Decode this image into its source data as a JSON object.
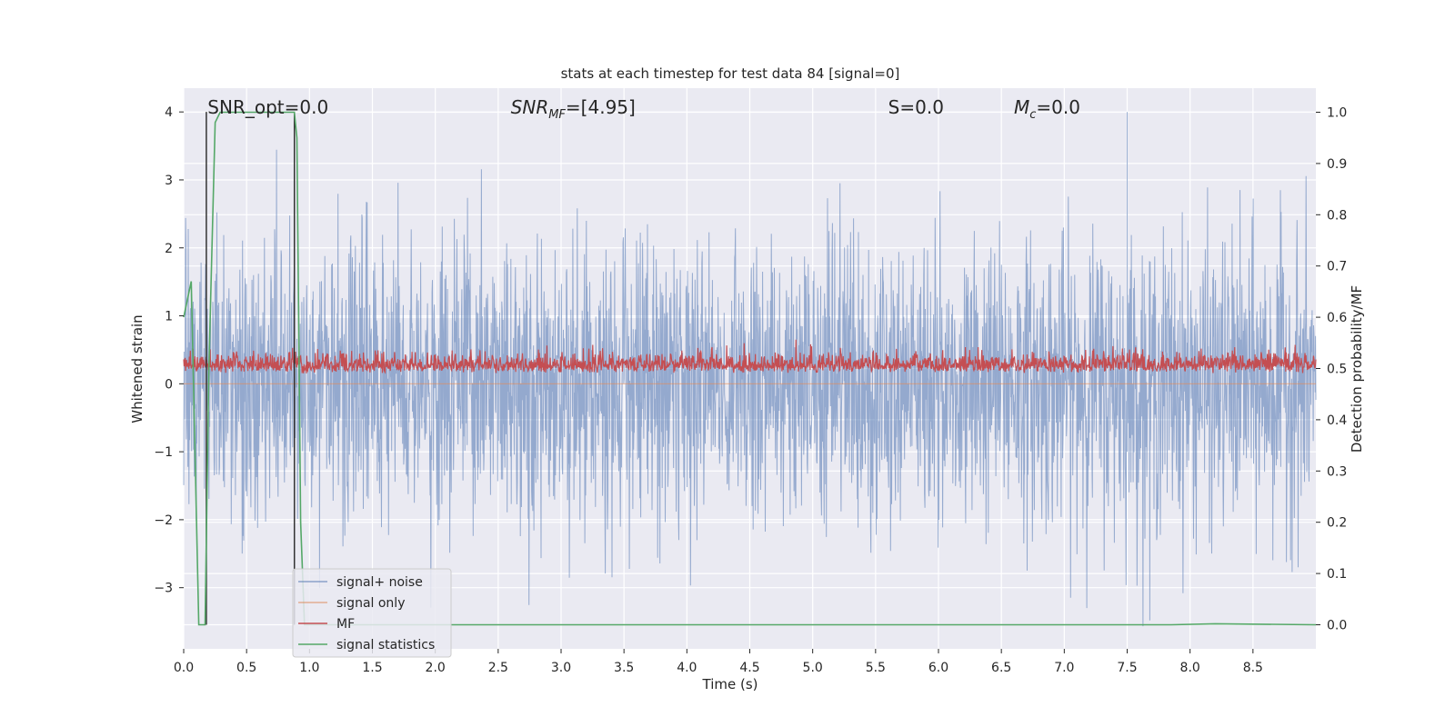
{
  "chart_data": {
    "type": "line",
    "title": "stats at each timestep for test data 84 [signal=0]",
    "xlabel": "Time (s)",
    "ylabel": "Whitened strain",
    "y2label": "Detection probability/MF",
    "xlim": [
      0,
      9.0
    ],
    "ylim": [
      -3.9,
      4.35
    ],
    "y2lim": [
      -0.047,
      1.047
    ],
    "x_ticks": [
      0.0,
      0.5,
      1.0,
      1.5,
      2.0,
      2.5,
      3.0,
      3.5,
      4.0,
      4.5,
      5.0,
      5.5,
      6.0,
      6.5,
      7.0,
      7.5,
      8.0,
      8.5
    ],
    "x_tick_labels": [
      "0.0",
      "0.5",
      "1.0",
      "1.5",
      "2.0",
      "2.5",
      "3.0",
      "3.5",
      "4.0",
      "4.5",
      "5.0",
      "5.5",
      "6.0",
      "6.5",
      "7.0",
      "7.5",
      "8.0",
      "8.5"
    ],
    "y_ticks": [
      -3,
      -2,
      -1,
      0,
      1,
      2,
      3,
      4
    ],
    "y_tick_labels": [
      "−3",
      "−2",
      "−1",
      "0",
      "1",
      "2",
      "3",
      "4"
    ],
    "y2_ticks": [
      0.0,
      0.1,
      0.2,
      0.3,
      0.4,
      0.5,
      0.6,
      0.7,
      0.8,
      0.9,
      1.0
    ],
    "y2_tick_labels": [
      "0.0",
      "0.1",
      "0.2",
      "0.3",
      "0.4",
      "0.5",
      "0.6",
      "0.7",
      "0.8",
      "0.9",
      "1.0"
    ],
    "grid": true,
    "legend_position": "lower-left",
    "annotations": [
      {
        "text": "SNR_opt=0.0",
        "x": 0.19
      },
      {
        "text": "SNR_MF=[4.95]",
        "x": 2.6
      },
      {
        "text": "S=0.0",
        "x": 5.6
      },
      {
        "text": "M_c=0.0",
        "x": 6.6
      }
    ],
    "series": [
      {
        "name": "signal+ noise",
        "color": "#4c72b0",
        "style": "dense noise approx. within ±3.5, peaks near 4.0 at t≈7.5"
      },
      {
        "name": "signal only",
        "color": "#dd8452",
        "style": "flat at 0"
      },
      {
        "name": "MF",
        "color": "#c44e52",
        "style": "noisy band between 0.0 and 0.7 (right axis ~0.46-0.54)"
      },
      {
        "name": "signal statistics",
        "color": "#55a868",
        "x": [
          0.0,
          0.06,
          0.12,
          0.17,
          0.2,
          0.25,
          0.29,
          0.88,
          0.9,
          0.93,
          0.96,
          7.85,
          8.2,
          9.0
        ],
        "values": [
          0.6,
          0.67,
          0.0,
          0.0,
          0.5,
          0.98,
          1.0,
          1.0,
          0.95,
          0.2,
          0.0,
          0.0,
          0.002,
          0.0
        ]
      }
    ],
    "vertical_lines": [
      {
        "x": 0.18,
        "color": "#333333"
      },
      {
        "x": 0.88,
        "color": "#333333"
      }
    ]
  }
}
